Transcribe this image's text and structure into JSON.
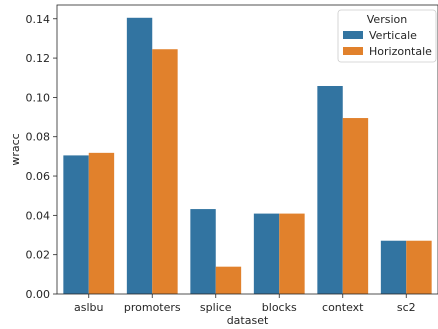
{
  "chart_data": {
    "type": "bar",
    "title": "",
    "xlabel": "dataset",
    "ylabel": "wracc",
    "categories": [
      "aslbu",
      "promoters",
      "splice",
      "blocks",
      "context",
      "sc2"
    ],
    "series": [
      {
        "name": "Verticale",
        "color": "#3274a1",
        "values": [
          0.0705,
          0.1405,
          0.0432,
          0.0409,
          0.1058,
          0.0271
        ]
      },
      {
        "name": "Horizontale",
        "color": "#e1812c",
        "values": [
          0.0718,
          0.1245,
          0.0139,
          0.0409,
          0.0895,
          0.0271
        ]
      }
    ],
    "ylim": [
      0,
      0.147
    ],
    "yticks": [
      "0.00",
      "0.02",
      "0.04",
      "0.06",
      "0.08",
      "0.10",
      "0.12",
      "0.14"
    ],
    "grid": false,
    "legend": {
      "title": "Version",
      "position": "top-right"
    }
  }
}
